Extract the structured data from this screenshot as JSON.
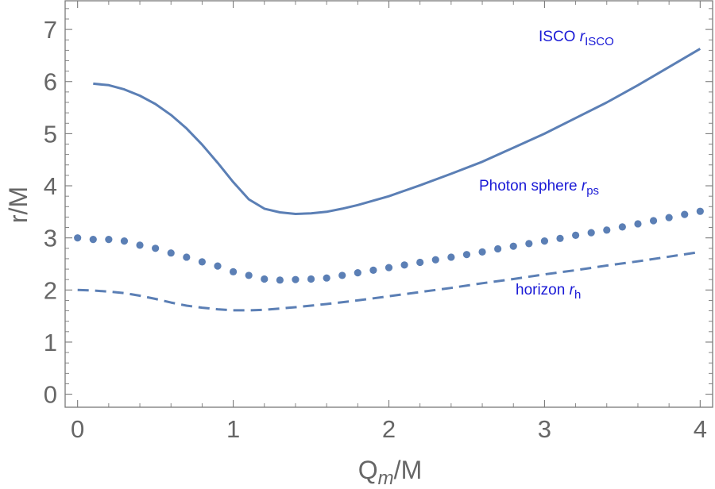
{
  "chart_data": {
    "type": "line",
    "title": "",
    "xlabel": {
      "main": "Q",
      "sub": "m",
      "suffix": "/M"
    },
    "ylabel": "r/M",
    "xlim": [
      -0.08,
      4.08
    ],
    "ylim": [
      -0.25,
      7.55
    ],
    "xticks": [
      "0",
      "1",
      "2",
      "3",
      "4"
    ],
    "yticks": [
      "0",
      "1",
      "2",
      "3",
      "4",
      "5",
      "6",
      "7"
    ],
    "colors": {
      "series": "#5b7fb5",
      "annotation": "#1a1ad6",
      "frame": "#7a7a7a",
      "text": "#666666"
    },
    "series": [
      {
        "name": "ISCO",
        "style": "solid",
        "label": {
          "text": "ISCO ",
          "var": "r",
          "sub": "ISCO"
        },
        "x": [
          0.1,
          0.2,
          0.3,
          0.4,
          0.5,
          0.6,
          0.7,
          0.8,
          0.9,
          1.0,
          1.1,
          1.2,
          1.3,
          1.4,
          1.5,
          1.6,
          1.7,
          1.8,
          2.0,
          2.2,
          2.4,
          2.6,
          2.8,
          3.0,
          3.2,
          3.4,
          3.6,
          3.8,
          4.0
        ],
        "y": [
          5.96,
          5.93,
          5.85,
          5.73,
          5.57,
          5.36,
          5.1,
          4.79,
          4.44,
          4.07,
          3.74,
          3.56,
          3.49,
          3.46,
          3.47,
          3.5,
          3.56,
          3.63,
          3.8,
          4.01,
          4.23,
          4.46,
          4.73,
          5.0,
          5.3,
          5.6,
          5.93,
          6.28,
          6.63
        ]
      },
      {
        "name": "Photon sphere",
        "style": "dotted",
        "label": {
          "text": "Photon sphere ",
          "var": "r",
          "sub": "ps"
        },
        "x": [
          0.0,
          0.1,
          0.2,
          0.3,
          0.4,
          0.5,
          0.6,
          0.7,
          0.8,
          0.9,
          1.0,
          1.1,
          1.2,
          1.3,
          1.4,
          1.5,
          1.6,
          1.7,
          1.8,
          1.9,
          2.0,
          2.1,
          2.2,
          2.3,
          2.4,
          2.5,
          2.6,
          2.7,
          2.8,
          2.9,
          3.0,
          3.1,
          3.2,
          3.3,
          3.4,
          3.5,
          3.6,
          3.7,
          3.8,
          3.9,
          4.0
        ],
        "y": [
          3.0,
          2.97,
          2.97,
          2.94,
          2.86,
          2.8,
          2.71,
          2.63,
          2.54,
          2.46,
          2.35,
          2.28,
          2.21,
          2.19,
          2.2,
          2.21,
          2.23,
          2.28,
          2.33,
          2.38,
          2.43,
          2.48,
          2.53,
          2.58,
          2.63,
          2.68,
          2.73,
          2.79,
          2.84,
          2.89,
          2.94,
          2.99,
          3.05,
          3.1,
          3.15,
          3.21,
          3.27,
          3.33,
          3.39,
          3.45,
          3.51
        ]
      },
      {
        "name": "horizon",
        "style": "dashed",
        "label": {
          "text": "horizon ",
          "var": "r",
          "sub": "h"
        },
        "x": [
          0.0,
          0.1,
          0.2,
          0.3,
          0.4,
          0.5,
          0.6,
          0.7,
          0.8,
          0.9,
          1.0,
          1.1,
          1.2,
          1.4,
          1.6,
          1.8,
          2.0,
          2.2,
          2.4,
          2.6,
          2.8,
          3.0,
          3.2,
          3.4,
          3.6,
          3.8,
          4.0
        ],
        "y": [
          2.0,
          1.99,
          1.97,
          1.94,
          1.89,
          1.83,
          1.76,
          1.7,
          1.66,
          1.63,
          1.61,
          1.61,
          1.62,
          1.67,
          1.73,
          1.8,
          1.88,
          1.96,
          2.04,
          2.13,
          2.21,
          2.3,
          2.38,
          2.47,
          2.55,
          2.64,
          2.73
        ]
      }
    ],
    "annotations_order": [
      "ISCO",
      "Photon sphere",
      "horizon"
    ]
  }
}
